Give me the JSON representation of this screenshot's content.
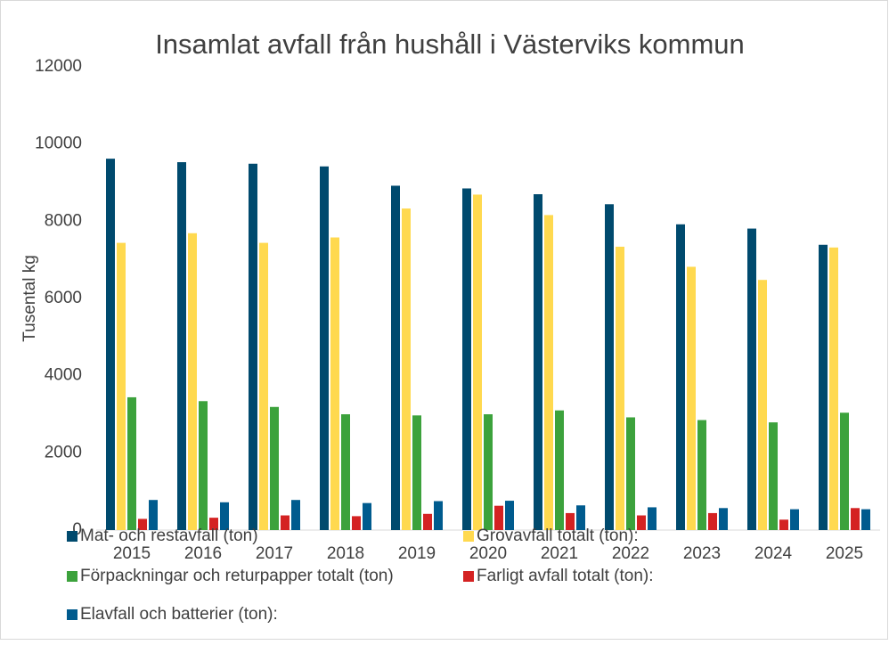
{
  "chart_data": {
    "type": "bar",
    "title": "Insamlat avfall från hushåll i Västerviks kommun",
    "y_label": "Tusental kg",
    "categories": [
      "2015",
      "2016",
      "2017",
      "2018",
      "2019",
      "2020",
      "2021",
      "2022",
      "2023",
      "2024",
      "2025"
    ],
    "series": [
      {
        "name": "Mat- och restavfall (ton)",
        "color": "#004a6e",
        "values": [
          9620,
          9530,
          9490,
          9420,
          8920,
          8850,
          8700,
          8440,
          7920,
          7810,
          7390
        ]
      },
      {
        "name": "Grovavfall totalt (ton):",
        "color": "#ffd94f",
        "values": [
          7440,
          7690,
          7440,
          7580,
          8330,
          8690,
          8160,
          7340,
          6820,
          6480,
          7320
        ]
      },
      {
        "name": "Förpackningar och returpapper totalt (ton)",
        "color": "#3ca23c",
        "values": [
          3440,
          3340,
          3190,
          3000,
          2970,
          3000,
          3100,
          2920,
          2850,
          2790,
          3040
        ]
      },
      {
        "name": "Farligt avfall totalt (ton):",
        "color": "#d42222",
        "values": [
          290,
          320,
          380,
          360,
          420,
          630,
          440,
          380,
          440,
          270,
          570
        ]
      },
      {
        "name": "Elavfall och batterier (ton):",
        "color": "#005b8e",
        "values": [
          780,
          720,
          780,
          700,
          750,
          760,
          640,
          590,
          570,
          540,
          540
        ]
      }
    ],
    "ylim": [
      0,
      12000
    ],
    "yticks": [
      0,
      2000,
      4000,
      6000,
      8000,
      10000,
      12000
    ],
    "grid": false
  }
}
